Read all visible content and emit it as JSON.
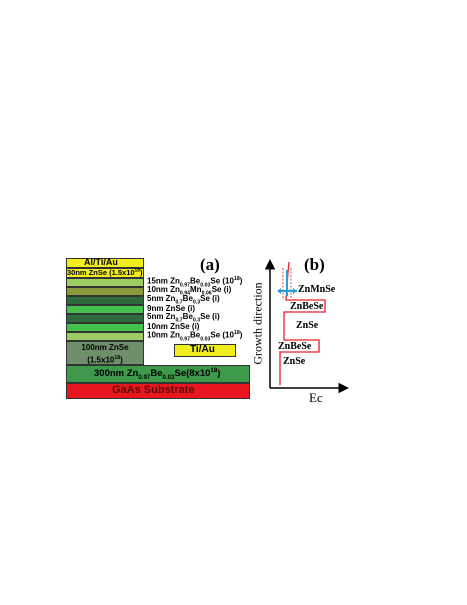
{
  "panel_a": {
    "label": "(a)",
    "contact_top": "Al/Ti/Au",
    "cap_layer": {
      "text": "30nm ZnSe (1.5x10",
      "sup": "18",
      "end": ")"
    },
    "contact_side": "Ti/Au",
    "layer_labels": [
      {
        "pre": "15nm Zn",
        "s1": "0.97",
        "mid": "Be",
        "s2": "0.03",
        "post": "Se (10",
        "sup": "18",
        "end": ")"
      },
      {
        "pre": "10nm Zn",
        "s1": "0.94",
        "mid": "Mn",
        "s2": "0.06",
        "post": "Se (i)",
        "sup": "",
        "end": ""
      },
      {
        "pre": "5nm Zn",
        "s1": "0.7",
        "mid": "Be",
        "s2": "0.3",
        "post": "Se (i)",
        "sup": "",
        "end": ""
      },
      {
        "pre": "9nm ZnSe (i)",
        "s1": "",
        "mid": "",
        "s2": "",
        "post": "",
        "sup": "",
        "end": ""
      },
      {
        "pre": "5nm Zn",
        "s1": "0.7",
        "mid": "Be",
        "s2": "0.3",
        "post": "Se (i)",
        "sup": "",
        "end": ""
      },
      {
        "pre": "10nm ZnSe (i)",
        "s1": "",
        "mid": "",
        "s2": "",
        "post": "",
        "sup": "",
        "end": ""
      },
      {
        "pre": "10nm Zn",
        "s1": "0.97",
        "mid": "Be",
        "s2": "0.03",
        "post": "Se (10",
        "sup": "18",
        "end": ")"
      }
    ],
    "znse_100": {
      "line1": "100nm ZnSe",
      "line2": "(1.5x10",
      "sup": "18",
      "end": ")"
    },
    "znbese_300": {
      "pre": "300nm Zn",
      "s1": "0.97",
      "mid": "Be",
      "s2": "0.03",
      "post": "Se(8x10",
      "sup": "18",
      "end": ")"
    },
    "substrate": "GaAs Substrate",
    "colors": {
      "contact": "#f2ee1e",
      "light_green": "#9ccd62",
      "olive": "#8a9a3e",
      "dark_green": "#2f6a3e",
      "bright_green": "#45c24e",
      "gray_green": "#6e8f6a",
      "mid_green": "#3d9a4a",
      "substrate": "#e8161f"
    }
  },
  "panel_b": {
    "label": "(b)",
    "y_axis_label": "Growth direction",
    "x_axis_label": "Ec",
    "region_labels": [
      "ZnMnSe",
      "ZnBeSe",
      "ZnSe",
      "ZnBeSe",
      "ZnSe"
    ],
    "colors": {
      "band": "#e0202a",
      "marker": "#26a0d8",
      "axis": "#000000"
    }
  }
}
